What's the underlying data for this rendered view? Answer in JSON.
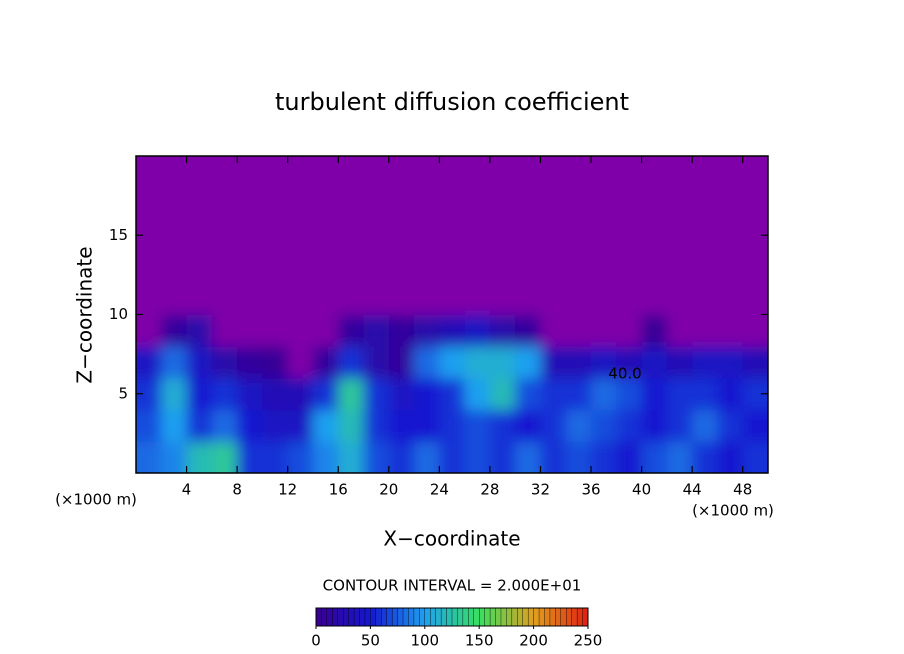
{
  "chart_data": {
    "type": "contour",
    "title": "turbulent diffusion coefficient",
    "x_label": "X−coordinate",
    "y_label": "Z−coordinate",
    "x_unit": "(×1000 m)",
    "y_unit": "(×1000 m)",
    "contour_interval": "CONTOUR INTERVAL = 2.000E+01",
    "contour_label": "40.0",
    "xlim": [
      0,
      50
    ],
    "ylim": [
      0,
      20
    ],
    "xticks": [
      4,
      8,
      12,
      16,
      20,
      24,
      28,
      32,
      36,
      40,
      44,
      48
    ],
    "yticks": [
      5,
      10,
      15
    ],
    "x": [
      1,
      3,
      5,
      7,
      9,
      11,
      13,
      15,
      17,
      19,
      21,
      23,
      25,
      27,
      29,
      31,
      33,
      35,
      37,
      39,
      41,
      43,
      45,
      47,
      49
    ],
    "y": [
      1,
      3,
      5,
      7,
      9,
      11,
      13,
      15,
      17,
      19
    ],
    "z": [
      [
        80,
        90,
        120,
        130,
        60,
        60,
        70,
        90,
        110,
        70,
        60,
        80,
        60,
        70,
        60,
        80,
        60,
        70,
        60,
        50,
        70,
        80,
        60,
        50,
        60
      ],
      [
        70,
        100,
        60,
        80,
        50,
        40,
        40,
        100,
        120,
        60,
        50,
        50,
        60,
        70,
        60,
        50,
        60,
        80,
        70,
        60,
        50,
        60,
        80,
        60,
        50
      ],
      [
        60,
        110,
        50,
        60,
        40,
        30,
        30,
        60,
        130,
        60,
        40,
        50,
        60,
        100,
        120,
        70,
        60,
        60,
        80,
        70,
        50,
        60,
        60,
        50,
        60
      ],
      [
        40,
        80,
        40,
        20,
        10,
        5,
        0,
        10,
        60,
        20,
        10,
        80,
        100,
        110,
        110,
        100,
        30,
        30,
        40,
        30,
        40,
        30,
        40,
        40,
        30
      ],
      [
        0,
        10,
        20,
        0,
        0,
        0,
        0,
        0,
        10,
        20,
        10,
        20,
        30,
        40,
        20,
        10,
        0,
        0,
        0,
        0,
        5,
        0,
        0,
        0,
        0
      ],
      [
        0,
        0,
        0,
        0,
        0,
        0,
        0,
        0,
        0,
        0,
        0,
        0,
        0,
        0,
        0,
        0,
        0,
        0,
        0,
        0,
        0,
        0,
        0,
        0,
        0
      ],
      [
        0,
        0,
        0,
        0,
        0,
        0,
        0,
        0,
        0,
        0,
        0,
        0,
        0,
        0,
        0,
        0,
        0,
        0,
        0,
        0,
        0,
        0,
        0,
        0,
        0
      ],
      [
        0,
        0,
        0,
        0,
        0,
        0,
        0,
        0,
        0,
        0,
        0,
        0,
        0,
        0,
        0,
        0,
        0,
        0,
        0,
        0,
        0,
        0,
        0,
        0,
        0
      ],
      [
        0,
        0,
        0,
        0,
        0,
        0,
        0,
        0,
        0,
        0,
        0,
        0,
        0,
        0,
        0,
        0,
        0,
        0,
        0,
        0,
        0,
        0,
        0,
        0,
        0
      ],
      [
        0,
        0,
        0,
        0,
        0,
        0,
        0,
        0,
        0,
        0,
        0,
        0,
        0,
        0,
        0,
        0,
        0,
        0,
        0,
        0,
        0,
        0,
        0,
        0,
        0
      ]
    ],
    "zero_color": "#7f00a8",
    "colors": [
      "#3a0090",
      "#1418d0",
      "#1ea0f0",
      "#38e060",
      "#e0a020",
      "#e02010"
    ],
    "colorbar_lim": [
      0,
      250
    ],
    "colorbar_ticks": [
      0,
      50,
      100,
      150,
      200,
      250
    ]
  }
}
